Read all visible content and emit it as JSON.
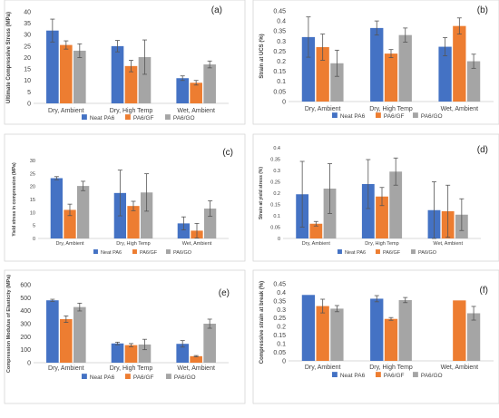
{
  "colors": {
    "neat": "#4472C4",
    "gf": "#ED7D31",
    "go": "#A5A5A5",
    "axis": "#D9D9D9",
    "text": "#404040"
  },
  "legend_labels": [
    "Neat PA6",
    "PA6/GF",
    "PA6/GO"
  ],
  "chart_data": [
    {
      "panel": "(a)",
      "type": "bar",
      "ylabel": "Ultimate Compressive Stress (MPa)",
      "categories": [
        "Dry, Ambient",
        "Dry, High Temp",
        "Wet, Ambient"
      ],
      "ylim": [
        0,
        40
      ],
      "yticks": [
        "0",
        "5",
        "10",
        "15",
        "20",
        "25",
        "30",
        "35",
        "40"
      ],
      "legend": "bottom",
      "grid": false,
      "series": [
        {
          "name": "Neat PA6",
          "values": [
            31.8,
            25.0,
            11.0
          ],
          "errors": [
            5.0,
            2.5,
            1.0
          ]
        },
        {
          "name": "PA6/GF",
          "values": [
            25.5,
            16.3,
            9.0
          ],
          "errors": [
            1.8,
            2.5,
            1.0
          ]
        },
        {
          "name": "PA6/GO",
          "values": [
            23.0,
            20.2,
            17.0
          ],
          "errors": [
            3.0,
            7.5,
            1.5
          ]
        }
      ]
    },
    {
      "panel": "(b)",
      "type": "bar",
      "ylabel": "Strain at UCS (%)",
      "categories": [
        "Dry, Ambient",
        "Dry, High Temp",
        "Wet, Ambient"
      ],
      "ylim": [
        0,
        0.45
      ],
      "yticks": [
        "0",
        "0.05",
        "0.1",
        "0.15",
        "0.2",
        "0.25",
        "0.3",
        "0.35",
        "0.4",
        "0.45"
      ],
      "legend": "bottom",
      "grid": false,
      "series": [
        {
          "name": "Neat PA6",
          "values": [
            0.32,
            0.365,
            0.272
          ],
          "errors": [
            0.1,
            0.035,
            0.045
          ]
        },
        {
          "name": "PA6/GF",
          "values": [
            0.27,
            0.238,
            0.375
          ],
          "errors": [
            0.065,
            0.02,
            0.04
          ]
        },
        {
          "name": "PA6/GO",
          "values": [
            0.19,
            0.33,
            0.2
          ],
          "errors": [
            0.065,
            0.035,
            0.035
          ]
        }
      ]
    },
    {
      "panel": "(c)",
      "type": "bar",
      "ylabel": "Yield stress in compression (MPa)",
      "categories": [
        "Dry, Ambient",
        "Dry, High Temp",
        "Wet, Ambient"
      ],
      "ylim": [
        0,
        30
      ],
      "yticks": [
        "0",
        "5",
        "10",
        "15",
        "20",
        "25",
        "30"
      ],
      "legend": "bottom",
      "grid": false,
      "series": [
        {
          "name": "Neat PA6",
          "values": [
            23.2,
            17.5,
            5.8
          ],
          "errors": [
            0.6,
            8.8,
            2.5
          ]
        },
        {
          "name": "PA6/GF",
          "values": [
            11.0,
            12.5,
            3.0
          ],
          "errors": [
            2.2,
            1.8,
            2.8
          ]
        },
        {
          "name": "PA6/GO",
          "values": [
            20.2,
            17.7,
            11.5
          ],
          "errors": [
            1.8,
            7.2,
            3.0
          ]
        }
      ]
    },
    {
      "panel": "(d)",
      "type": "bar",
      "ylabel": "Strain at yield stress (%)",
      "categories": [
        "Dry, Ambient",
        "Dry, High Temp",
        "Wet, Ambient"
      ],
      "ylim": [
        0,
        0.4
      ],
      "yticks": [
        "0",
        "0.05",
        "0.1",
        "0.15",
        "0.2",
        "0.25",
        "0.3",
        "0.35",
        "0.4"
      ],
      "legend": "bottom",
      "grid": false,
      "series": [
        {
          "name": "Neat PA6",
          "values": [
            0.195,
            0.24,
            0.125
          ],
          "errors": [
            0.145,
            0.108,
            0.125
          ]
        },
        {
          "name": "PA6/GF",
          "values": [
            0.065,
            0.185,
            0.12
          ],
          "errors": [
            0.01,
            0.04,
            0.115
          ]
        },
        {
          "name": "PA6/GO",
          "values": [
            0.22,
            0.295,
            0.105
          ],
          "errors": [
            0.11,
            0.06,
            0.07
          ]
        }
      ]
    },
    {
      "panel": "(e)",
      "type": "bar",
      "ylabel": "Compression Modulus of Elasticity (MPa)",
      "categories": [
        "Dry, Ambient",
        "Dry, High Temp",
        "Wet, Ambient"
      ],
      "ylim": [
        0,
        600
      ],
      "yticks": [
        "0",
        "100",
        "200",
        "300",
        "400",
        "500",
        "600"
      ],
      "legend": "bottom",
      "grid": false,
      "series": [
        {
          "name": "Neat PA6",
          "values": [
            480,
            148,
            145
          ],
          "errors": [
            8,
            10,
            25
          ]
        },
        {
          "name": "PA6/GF",
          "values": [
            335,
            135,
            50
          ],
          "errors": [
            25,
            12,
            5
          ]
        },
        {
          "name": "PA6/GO",
          "values": [
            428,
            140,
            300
          ],
          "errors": [
            30,
            40,
            35
          ]
        }
      ]
    },
    {
      "panel": "(f)",
      "type": "bar",
      "ylabel": "Compressive strain at break (%)",
      "categories": [
        "Dry, Ambient",
        "Dry, High Temp",
        "Wet, Ambient"
      ],
      "ylim": [
        0,
        0.45
      ],
      "yticks": [
        "0",
        "0.05",
        "0.1",
        "0.15",
        "0.2",
        "0.25",
        "0.3",
        "0.35",
        "0.4",
        "0.45"
      ],
      "legend": "bottom",
      "grid": false,
      "series": [
        {
          "name": "Neat PA6",
          "values": [
            0.385,
            0.363,
            0
          ],
          "errors": [
            0,
            0.018,
            0
          ]
        },
        {
          "name": "PA6/GF",
          "values": [
            0.32,
            0.245,
            0.353
          ],
          "errors": [
            0.04,
            0.008,
            0
          ]
        },
        {
          "name": "PA6/GO",
          "values": [
            0.305,
            0.355,
            0.278
          ],
          "errors": [
            0.018,
            0.015,
            0.04
          ]
        }
      ]
    }
  ]
}
